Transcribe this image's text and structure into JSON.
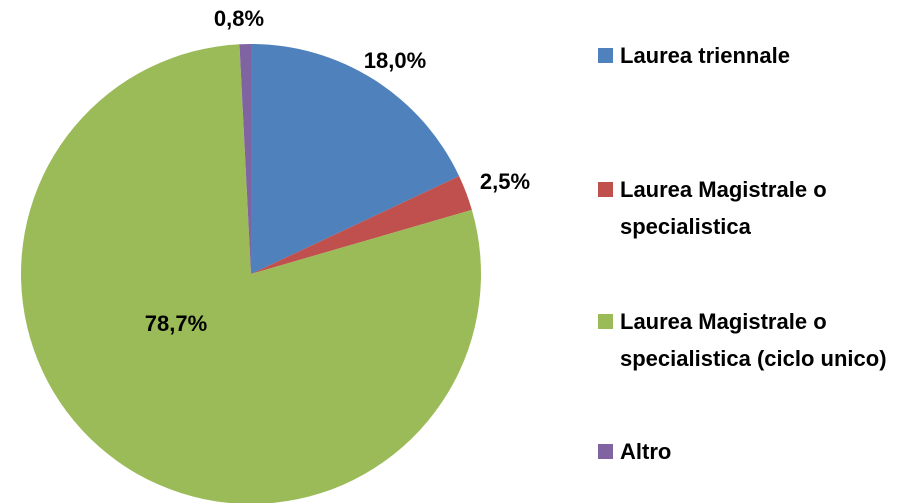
{
  "chart_data": {
    "type": "pie",
    "categories": [
      "Laurea triennale",
      "Laurea Magistrale o specialistica",
      "Laurea Magistrale o specialistica (ciclo unico)",
      "Altro"
    ],
    "values": [
      18.0,
      2.5,
      78.7,
      0.8
    ],
    "value_labels": [
      "18,0%",
      "2,5%",
      "78,7%",
      "0,8%"
    ],
    "colors": [
      "#4f81bd",
      "#c0504d",
      "#9bbb59",
      "#8064a2"
    ],
    "legend": "right"
  }
}
